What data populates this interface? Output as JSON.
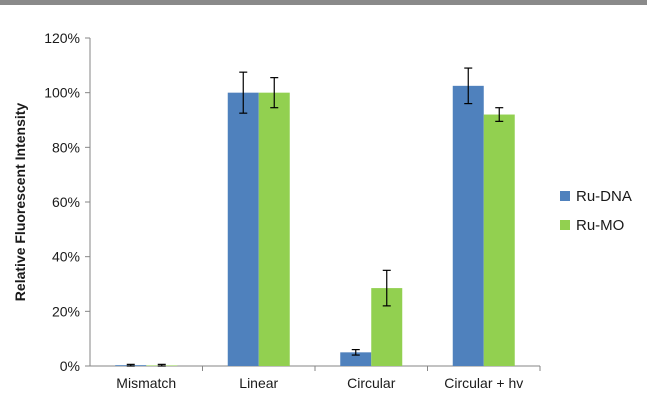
{
  "chart_data": {
    "type": "bar",
    "categories": [
      "Mismatch",
      "Linear",
      "Circular",
      "Circular + hv"
    ],
    "series": [
      {
        "name": "Ru-DNA",
        "color": "#4f81bd",
        "values": [
          0.3,
          100,
          5,
          102.5
        ],
        "errors": [
          0.3,
          7.5,
          1,
          6.5
        ]
      },
      {
        "name": "Ru-MO",
        "color": "#92d050",
        "values": [
          0.2,
          100,
          28.5,
          92
        ],
        "errors": [
          0.4,
          5.5,
          6.5,
          2.5
        ]
      }
    ],
    "title": "",
    "xlabel": "",
    "ylabel": "Relative Fluorescent Intensity",
    "ylim": [
      0,
      120
    ],
    "yticks": [
      0,
      20,
      40,
      60,
      80,
      100,
      120
    ],
    "ytick_labels": [
      "0%",
      "20%",
      "40%",
      "60%",
      "80%",
      "100%",
      "120%"
    ],
    "grid": false,
    "legend_position": "right"
  }
}
